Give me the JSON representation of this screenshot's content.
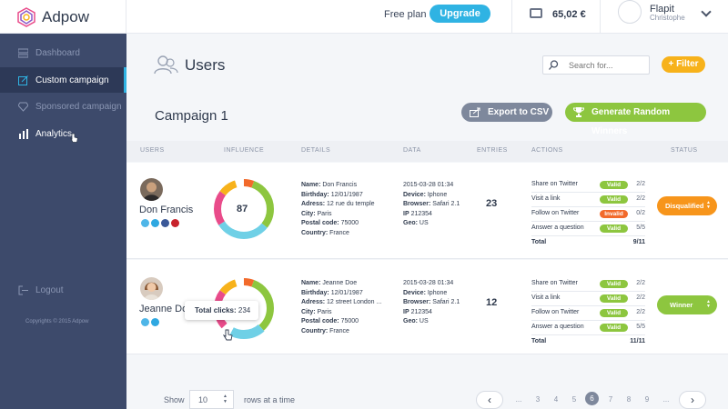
{
  "app": {
    "name": "Adpow"
  },
  "topbar": {
    "plan": "Free plan",
    "upgrade": "Upgrade",
    "balance": "65,02 €",
    "user_name": "Flapit",
    "user_sub": "Christophe"
  },
  "sidebar": {
    "items": [
      {
        "label": "Dashboard"
      },
      {
        "label": "Custom campaign"
      },
      {
        "label": "Sponsored campaign"
      },
      {
        "label": "Analytics"
      }
    ],
    "logout": "Logout",
    "copyright": "Copyrights © 2015 Adpow"
  },
  "page": {
    "title": "Users",
    "search_placeholder": "Search for...",
    "filter": "+ Filter",
    "campaign": "Campaign 1",
    "export": "Export to CSV",
    "generate": "Generate Random Winners"
  },
  "table": {
    "headers": [
      "USERS",
      "INFLUENCE",
      "DETAILS",
      "DATA",
      "ENTRIES",
      "ACTIONS",
      "STATUS"
    ],
    "rows": [
      {
        "name": "Don Francis",
        "influence": "87",
        "details": [
          {
            "k": "Name:",
            "v": "Don Francis"
          },
          {
            "k": "Birthday:",
            "v": "12/01/1987"
          },
          {
            "k": "Adress:",
            "v": "12 rue du temple"
          },
          {
            "k": "City:",
            "v": "Paris"
          },
          {
            "k": "Postal code:",
            "v": "75000"
          },
          {
            "k": "Country:",
            "v": "France"
          }
        ],
        "data": [
          {
            "k": "",
            "v": "2015-03-28 01:34"
          },
          {
            "k": "Device:",
            "v": "Iphone"
          },
          {
            "k": "Browser:",
            "v": "Safari 2.1"
          },
          {
            "k": "IP",
            "v": "212354"
          },
          {
            "k": "Geo:",
            "v": "US"
          }
        ],
        "entries": "23",
        "actions": [
          {
            "label": "Share on Twitter",
            "badge": "Valid",
            "score": "2/2"
          },
          {
            "label": "Visit a link",
            "badge": "Valid",
            "score": "2/2"
          },
          {
            "label": "Follow on Twitter",
            "badge": "Invalid",
            "score": "0/2"
          },
          {
            "label": "Answer a question",
            "badge": "Valid",
            "score": "5/5"
          }
        ],
        "total_label": "Total",
        "total": "9/11",
        "status": "Disqualified"
      },
      {
        "name": "Jeanne Doe",
        "details": [
          {
            "k": "Name:",
            "v": "Jeanne Doe"
          },
          {
            "k": "Birthday:",
            "v": "12/01/1987"
          },
          {
            "k": "Adress:",
            "v": "12 street London ..."
          },
          {
            "k": "City:",
            "v": "Paris"
          },
          {
            "k": "Postal code:",
            "v": "75000"
          },
          {
            "k": "Country:",
            "v": "France"
          }
        ],
        "data": [
          {
            "k": "",
            "v": "2015-03-28 01:34"
          },
          {
            "k": "Device:",
            "v": "Iphone"
          },
          {
            "k": "Browser:",
            "v": "Safari 2.1"
          },
          {
            "k": "IP",
            "v": "212354"
          },
          {
            "k": "Geo:",
            "v": "US"
          }
        ],
        "entries": "12",
        "actions": [
          {
            "label": "Share on Twitter",
            "badge": "Valid",
            "score": "2/2"
          },
          {
            "label": "Visit a link",
            "badge": "Valid",
            "score": "2/2"
          },
          {
            "label": "Follow on Twitter",
            "badge": "Valid",
            "score": "2/2"
          },
          {
            "label": "Answer a question",
            "badge": "Valid",
            "score": "5/5"
          }
        ],
        "total_label": "Total",
        "total": "11/11",
        "status": "Winner",
        "tooltip_label": "Total clicks:",
        "tooltip_value": "234"
      }
    ]
  },
  "pagination": {
    "show": "Show",
    "rows_value": "10",
    "rows_text": "rows at a time",
    "prev": "‹",
    "next": "›",
    "pages": [
      "...",
      "3",
      "4",
      "5",
      "6",
      "7",
      "8",
      "9",
      "..."
    ],
    "current": "6"
  },
  "colors": {
    "accent": "#2fb3e3",
    "sidebar": "#3d4a6b",
    "valid": "#8dc63f",
    "invalid": "#f26a2b",
    "filter": "#f7b21b",
    "disqualified": "#f7951b"
  }
}
